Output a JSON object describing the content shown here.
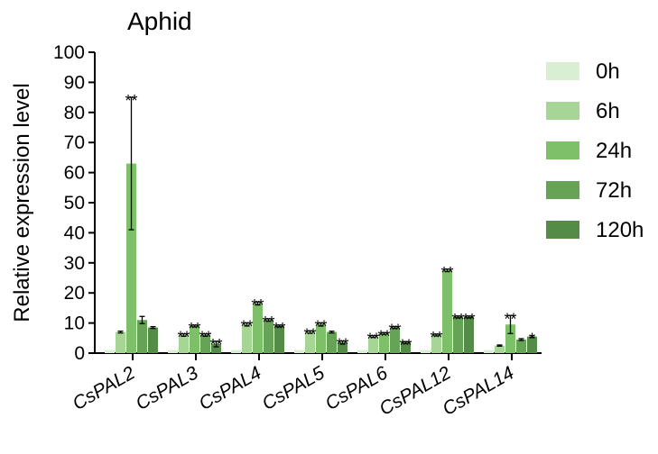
{
  "colors": {
    "series": [
      "#d9efd3",
      "#a6d596",
      "#7ebf69",
      "#67a357",
      "#548b46"
    ],
    "axis": "#000000",
    "errorbar": "#000000"
  },
  "chart_data": {
    "type": "bar",
    "title": "Aphid",
    "xlabel": "",
    "ylabel": "Relative expression level",
    "ylim": [
      0,
      100
    ],
    "yticks": [
      0,
      10,
      20,
      30,
      40,
      50,
      60,
      70,
      80,
      90,
      100
    ],
    "categories": [
      "CsPAL2",
      "CsPAL3",
      "CsPAL4",
      "CsPAL5",
      "CsPAL6",
      "CsPAL12",
      "CsPAL14"
    ],
    "legend_position": "right",
    "series": [
      {
        "name": "0h",
        "values": [
          1,
          1,
          1,
          1,
          1,
          1,
          1
        ],
        "errors": [
          0,
          0,
          0,
          0,
          0,
          0,
          0
        ],
        "sig": [
          "",
          "",
          "",
          "",
          "",
          "",
          ""
        ]
      },
      {
        "name": "6h",
        "values": [
          7,
          6,
          9.5,
          7,
          5.5,
          6,
          2.5
        ],
        "errors": [
          0.3,
          0.4,
          0.5,
          0.4,
          0.3,
          0.3,
          0.2
        ],
        "sig": [
          "",
          "**",
          "**",
          "**",
          "**",
          "**",
          ""
        ]
      },
      {
        "name": "24h",
        "values": [
          63,
          9,
          16.5,
          9.5,
          6.5,
          27.5,
          9.5
        ],
        "errors": [
          22,
          0.3,
          0.5,
          0.5,
          0.3,
          0.4,
          3
        ],
        "sig": [
          "**",
          "**",
          "**",
          "**",
          "**",
          "**",
          "**"
        ]
      },
      {
        "name": "72h",
        "values": [
          11,
          6,
          11,
          7,
          8.5,
          12,
          4.5
        ],
        "errors": [
          1.2,
          0.4,
          0.4,
          0.3,
          0.3,
          0.3,
          0.3
        ],
        "sig": [
          "",
          "**",
          "**",
          "",
          "**",
          "**",
          ""
        ]
      },
      {
        "name": "120h",
        "values": [
          8.5,
          3,
          9,
          3.5,
          3.5,
          12,
          5.5
        ],
        "errors": [
          0.3,
          0.9,
          0.3,
          0.5,
          0.3,
          0.3,
          0.3
        ],
        "sig": [
          "",
          "**",
          "**",
          "**",
          "**",
          "**",
          "*"
        ]
      }
    ]
  }
}
